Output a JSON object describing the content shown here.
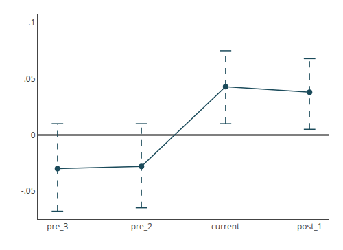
{
  "chart_data": {
    "type": "line",
    "categories": [
      "pre_3",
      "pre_2",
      "current",
      "post_1"
    ],
    "values": [
      -0.03,
      -0.028,
      0.043,
      0.038
    ],
    "ci_lower": [
      -0.068,
      -0.065,
      0.01,
      0.005
    ],
    "ci_upper": [
      0.01,
      0.01,
      0.075,
      0.068
    ],
    "ref_line": 0,
    "color": "#1a4a5a",
    "ylim": [
      -0.075,
      0.108
    ],
    "yticks": [
      {
        "value": -0.05,
        "label": "-.05"
      },
      0,
      {
        "value": 0.05,
        "label": ".05"
      },
      {
        "value": 0.1,
        "label": ".1"
      }
    ],
    "grid": false
  }
}
